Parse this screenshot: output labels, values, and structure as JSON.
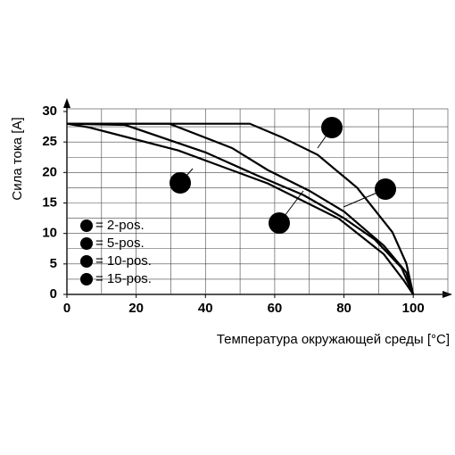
{
  "chart_data": {
    "type": "line",
    "xlabel": "Температура окружающей среды [°C]",
    "ylabel": "Сила тока [A]",
    "xlim": [
      0,
      110
    ],
    "ylim": [
      0,
      30
    ],
    "xticks": [
      0,
      20,
      40,
      60,
      80,
      100
    ],
    "yticks": [
      0,
      5,
      10,
      15,
      20,
      25,
      30
    ],
    "xgrid": [
      10,
      20,
      30,
      40,
      50,
      60,
      70,
      80,
      90,
      100
    ],
    "ygrid": [
      2.5,
      5,
      7.5,
      10,
      12.5,
      15,
      17.5,
      20,
      22.5,
      25,
      27.5
    ],
    "grid": true,
    "series": [
      {
        "name": "= 2-pos.",
        "marker": "1",
        "color": "#000000",
        "x": [
          0,
          52.8,
          62,
          72.4,
          83.8,
          94,
          98,
          100
        ],
        "values": [
          28,
          28,
          25.8,
          22.9,
          17.5,
          10.2,
          5.1,
          0
        ]
      },
      {
        "name": "= 5-pos.",
        "marker": "2",
        "color": "#000000",
        "x": [
          0,
          29.6,
          47.7,
          58,
          70,
          80,
          91.5,
          98,
          100
        ],
        "values": [
          28,
          28,
          24,
          20.4,
          17,
          13.6,
          8,
          3.6,
          0
        ]
      },
      {
        "name": "= 10-pos.",
        "marker": "3",
        "color": "#000000",
        "x": [
          0,
          16.8,
          40,
          55,
          68.3,
          80,
          88.9,
          96.6,
          100
        ],
        "values": [
          28,
          27.8,
          23.3,
          19.5,
          16.3,
          12.5,
          9,
          4.4,
          0
        ]
      },
      {
        "name": "= 15-pos.",
        "marker": "4",
        "color": "#000000",
        "x": [
          0,
          6.4,
          32.2,
          58,
          78.6,
          91.5,
          97.4,
          100
        ],
        "values": [
          28,
          27.4,
          23.6,
          18.2,
          12.4,
          6.6,
          2.2,
          0
        ]
      }
    ]
  }
}
